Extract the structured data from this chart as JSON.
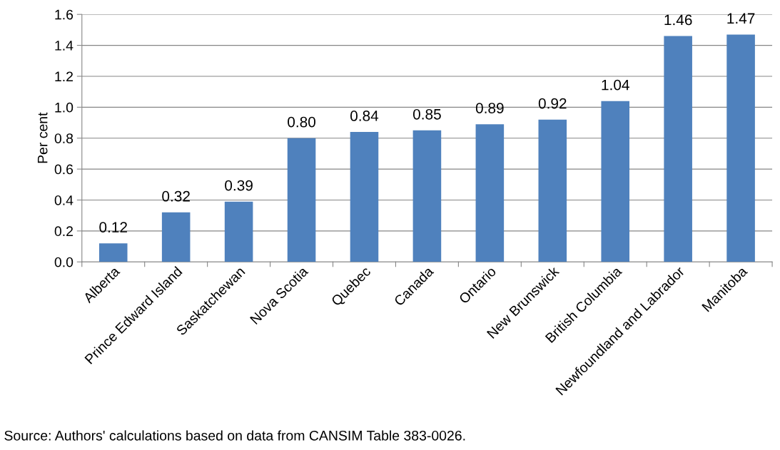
{
  "chart_data": {
    "type": "bar",
    "ylabel": "Per cent",
    "categories": [
      "Alberta",
      "Prince Edward Island",
      "Saskatchewan",
      "Nova Scotia",
      "Quebec",
      "Canada",
      "Ontario",
      "New Brunswick",
      "British Columbia",
      "Newfoundland and Labrador",
      "Manitoba"
    ],
    "values": [
      0.12,
      0.32,
      0.39,
      0.8,
      0.84,
      0.85,
      0.89,
      0.92,
      1.04,
      1.46,
      1.47
    ],
    "value_labels": [
      "0.12",
      "0.32",
      "0.39",
      "0.80",
      "0.84",
      "0.85",
      "0.89",
      "0.92",
      "1.04",
      "1.46",
      "1.47"
    ],
    "color": "#4f81bd",
    "ylim": [
      0,
      1.6
    ],
    "yticks": [
      {
        "value": 0,
        "label": "0.0"
      },
      {
        "value": 0.2,
        "label": "0.2"
      },
      {
        "value": 0.4,
        "label": "0.4"
      },
      {
        "value": 0.6,
        "label": "0.6"
      },
      {
        "value": 0.8,
        "label": "0.8"
      },
      {
        "value": 1.0,
        "label": "1.0"
      },
      {
        "value": 1.2,
        "label": "1.2"
      },
      {
        "value": 1.4,
        "label": "1.4"
      },
      {
        "value": 1.6,
        "label": "1.6"
      }
    ],
    "grid": "y",
    "legend": false,
    "annotations": [
      "Source: Authors' calculations based on data from CANSIM Table 383-0026."
    ]
  }
}
